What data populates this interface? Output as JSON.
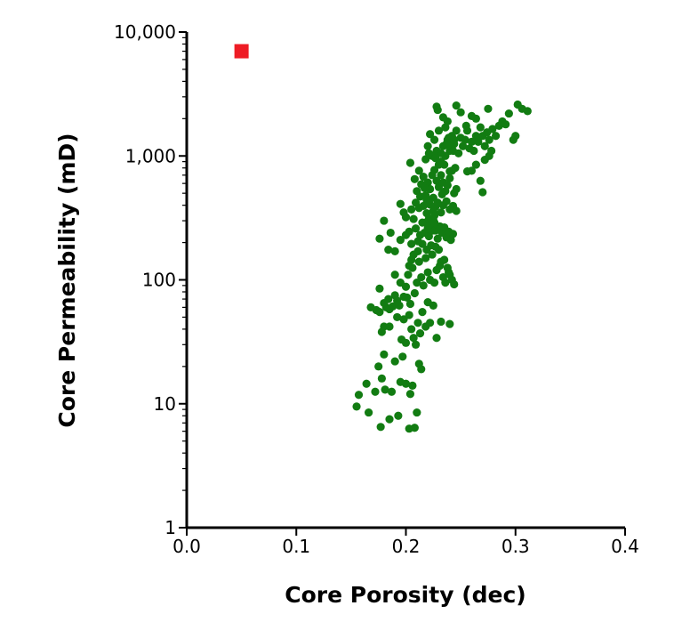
{
  "colors": {
    "series_main": "#127c12",
    "series_outlier": "#ee1c25",
    "axis": "#000000"
  },
  "chart_data": {
    "type": "scatter",
    "xlabel": "Core Porosity (dec)",
    "ylabel": "Core Permeability (mD)",
    "xlim": [
      0.0,
      0.4
    ],
    "ylim": [
      1,
      10000
    ],
    "yscale": "log",
    "grid": false,
    "legend": "none",
    "x_ticks": [
      "0.0",
      "0.1",
      "0.2",
      "0.3",
      "0.4"
    ],
    "x_tick_values": [
      0.0,
      0.1,
      0.2,
      0.3,
      0.4
    ],
    "y_ticks": [
      "1",
      "10",
      "100",
      "1,000",
      "10,000"
    ],
    "y_tick_values": [
      1,
      10,
      100,
      1000,
      10000
    ],
    "series": [
      {
        "marker": "circle",
        "color": "#127c12",
        "points": [
          [
            0.155,
            9.5
          ],
          [
            0.157,
            11.8
          ],
          [
            0.164,
            14.5
          ],
          [
            0.166,
            8.5
          ],
          [
            0.172,
            12.5
          ],
          [
            0.175,
            20
          ],
          [
            0.177,
            6.5
          ],
          [
            0.178,
            16
          ],
          [
            0.18,
            25
          ],
          [
            0.181,
            13
          ],
          [
            0.185,
            7.5
          ],
          [
            0.187,
            12.5
          ],
          [
            0.19,
            22
          ],
          [
            0.193,
            8
          ],
          [
            0.195,
            15
          ],
          [
            0.197,
            24
          ],
          [
            0.2,
            14.5
          ],
          [
            0.203,
            6.3
          ],
          [
            0.204,
            12
          ],
          [
            0.206,
            14
          ],
          [
            0.208,
            6.4
          ],
          [
            0.21,
            8.5
          ],
          [
            0.212,
            21
          ],
          [
            0.214,
            19
          ],
          [
            0.168,
            60
          ],
          [
            0.173,
            57
          ],
          [
            0.176,
            55
          ],
          [
            0.178,
            38
          ],
          [
            0.18,
            42
          ],
          [
            0.182,
            60
          ],
          [
            0.184,
            70
          ],
          [
            0.185,
            42
          ],
          [
            0.188,
            61
          ],
          [
            0.19,
            75
          ],
          [
            0.192,
            50
          ],
          [
            0.194,
            62
          ],
          [
            0.196,
            33
          ],
          [
            0.198,
            48
          ],
          [
            0.2,
            31
          ],
          [
            0.201,
            72
          ],
          [
            0.203,
            52
          ],
          [
            0.205,
            40
          ],
          [
            0.207,
            34
          ],
          [
            0.209,
            30
          ],
          [
            0.211,
            45
          ],
          [
            0.213,
            37
          ],
          [
            0.215,
            55
          ],
          [
            0.218,
            42
          ],
          [
            0.22,
            66
          ],
          [
            0.222,
            45
          ],
          [
            0.225,
            62
          ],
          [
            0.228,
            34
          ],
          [
            0.232,
            46
          ],
          [
            0.24,
            44
          ],
          [
            0.176,
            85
          ],
          [
            0.18,
            65
          ],
          [
            0.185,
            58
          ],
          [
            0.19,
            110
          ],
          [
            0.192,
            68
          ],
          [
            0.195,
            95
          ],
          [
            0.198,
            73
          ],
          [
            0.2,
            88
          ],
          [
            0.202,
            110
          ],
          [
            0.204,
            64
          ],
          [
            0.206,
            125
          ],
          [
            0.208,
            78
          ],
          [
            0.21,
            95
          ],
          [
            0.212,
            140
          ],
          [
            0.214,
            105
          ],
          [
            0.216,
            90
          ],
          [
            0.218,
            150
          ],
          [
            0.22,
            115
          ],
          [
            0.222,
            100
          ],
          [
            0.224,
            160
          ],
          [
            0.226,
            95
          ],
          [
            0.228,
            120
          ],
          [
            0.23,
            175
          ],
          [
            0.232,
            140
          ],
          [
            0.234,
            105
          ],
          [
            0.236,
            95
          ],
          [
            0.238,
            125
          ],
          [
            0.24,
            110
          ],
          [
            0.242,
            100
          ],
          [
            0.244,
            92
          ],
          [
            0.207,
            160
          ],
          [
            0.211,
            170
          ],
          [
            0.215,
            195
          ],
          [
            0.219,
            175
          ],
          [
            0.223,
            190
          ],
          [
            0.227,
            185
          ],
          [
            0.231,
            130
          ],
          [
            0.235,
            145
          ],
          [
            0.239,
            115
          ],
          [
            0.203,
            130
          ],
          [
            0.205,
            145
          ],
          [
            0.176,
            215
          ],
          [
            0.18,
            300
          ],
          [
            0.184,
            175
          ],
          [
            0.186,
            240
          ],
          [
            0.19,
            170
          ],
          [
            0.195,
            210
          ],
          [
            0.198,
            350
          ],
          [
            0.2,
            230
          ],
          [
            0.203,
            245
          ],
          [
            0.205,
            195
          ],
          [
            0.207,
            310
          ],
          [
            0.209,
            260
          ],
          [
            0.211,
            205
          ],
          [
            0.213,
            230
          ],
          [
            0.215,
            290
          ],
          [
            0.217,
            240
          ],
          [
            0.219,
            345
          ],
          [
            0.221,
            225
          ],
          [
            0.223,
            260
          ],
          [
            0.225,
            305
          ],
          [
            0.227,
            250
          ],
          [
            0.229,
            215
          ],
          [
            0.231,
            270
          ],
          [
            0.233,
            240
          ],
          [
            0.235,
            265
          ],
          [
            0.237,
            220
          ],
          [
            0.239,
            245
          ],
          [
            0.241,
            210
          ],
          [
            0.243,
            235
          ],
          [
            0.195,
            410
          ],
          [
            0.2,
            320
          ],
          [
            0.205,
            370
          ],
          [
            0.209,
            420
          ],
          [
            0.212,
            380
          ],
          [
            0.216,
            395
          ],
          [
            0.219,
            440
          ],
          [
            0.222,
            405
          ],
          [
            0.225,
            360
          ],
          [
            0.227,
            390
          ],
          [
            0.229,
            420
          ],
          [
            0.232,
            350
          ],
          [
            0.234,
            400
          ],
          [
            0.237,
            430
          ],
          [
            0.24,
            370
          ],
          [
            0.243,
            395
          ],
          [
            0.246,
            360
          ],
          [
            0.218,
            290
          ],
          [
            0.221,
            310
          ],
          [
            0.224,
            275
          ],
          [
            0.226,
            330
          ],
          [
            0.22,
            260
          ],
          [
            0.224,
            250
          ],
          [
            0.222,
            280
          ],
          [
            0.226,
            290
          ],
          [
            0.204,
            880
          ],
          [
            0.208,
            650
          ],
          [
            0.21,
            520
          ],
          [
            0.212,
            760
          ],
          [
            0.214,
            590
          ],
          [
            0.216,
            680
          ],
          [
            0.218,
            480
          ],
          [
            0.22,
            610
          ],
          [
            0.222,
            540
          ],
          [
            0.224,
            700
          ],
          [
            0.226,
            770
          ],
          [
            0.228,
            630
          ],
          [
            0.23,
            560
          ],
          [
            0.232,
            700
          ],
          [
            0.234,
            610
          ],
          [
            0.236,
            520
          ],
          [
            0.238,
            580
          ],
          [
            0.24,
            660
          ],
          [
            0.242,
            760
          ],
          [
            0.244,
            500
          ],
          [
            0.246,
            540
          ],
          [
            0.213,
            470
          ],
          [
            0.217,
            550
          ],
          [
            0.225,
            460
          ],
          [
            0.233,
            490
          ],
          [
            0.22,
            1200
          ],
          [
            0.222,
            1500
          ],
          [
            0.224,
            1000
          ],
          [
            0.226,
            1350
          ],
          [
            0.228,
            1100
          ],
          [
            0.23,
            1600
          ],
          [
            0.232,
            900
          ],
          [
            0.234,
            1200
          ],
          [
            0.236,
            1700
          ],
          [
            0.238,
            1300
          ],
          [
            0.24,
            1100
          ],
          [
            0.242,
            1450
          ],
          [
            0.244,
            1250
          ],
          [
            0.246,
            1600
          ],
          [
            0.248,
            1050
          ],
          [
            0.25,
            1400
          ],
          [
            0.252,
            1200
          ],
          [
            0.254,
            1350
          ],
          [
            0.256,
            1600
          ],
          [
            0.258,
            1150
          ],
          [
            0.26,
            1300
          ],
          [
            0.262,
            1100
          ],
          [
            0.264,
            1450
          ],
          [
            0.266,
            1300
          ],
          [
            0.268,
            1700
          ],
          [
            0.27,
            1450
          ],
          [
            0.272,
            1200
          ],
          [
            0.274,
            1550
          ],
          [
            0.276,
            1350
          ],
          [
            0.279,
            1650
          ],
          [
            0.282,
            1450
          ],
          [
            0.285,
            1750
          ],
          [
            0.288,
            1900
          ],
          [
            0.291,
            1800
          ],
          [
            0.294,
            2200
          ],
          [
            0.298,
            1350
          ],
          [
            0.3,
            1450
          ],
          [
            0.302,
            2600
          ],
          [
            0.306,
            2400
          ],
          [
            0.311,
            2300
          ],
          [
            0.228,
            2500
          ],
          [
            0.229,
            2350
          ],
          [
            0.234,
            2050
          ],
          [
            0.238,
            1900
          ],
          [
            0.246,
            2550
          ],
          [
            0.25,
            2250
          ],
          [
            0.255,
            1750
          ],
          [
            0.26,
            2100
          ],
          [
            0.264,
            2000
          ],
          [
            0.275,
            2400
          ],
          [
            0.235,
            850
          ],
          [
            0.24,
            750
          ],
          [
            0.245,
            800
          ],
          [
            0.256,
            750
          ],
          [
            0.26,
            760
          ],
          [
            0.264,
            850
          ],
          [
            0.27,
            510
          ],
          [
            0.272,
            930
          ],
          [
            0.268,
            630
          ],
          [
            0.276,
            1000
          ],
          [
            0.278,
            1100
          ],
          [
            0.238,
            1350
          ],
          [
            0.24,
            1200
          ],
          [
            0.242,
            1250
          ],
          [
            0.244,
            1350
          ],
          [
            0.241,
            1150
          ],
          [
            0.237,
            1250
          ],
          [
            0.243,
            1100
          ],
          [
            0.239,
            1400
          ],
          [
            0.236,
            1000
          ],
          [
            0.23,
            850
          ],
          [
            0.232,
            1050
          ],
          [
            0.227,
            960
          ],
          [
            0.218,
            940
          ],
          [
            0.221,
            1050
          ]
        ]
      },
      {
        "marker": "square",
        "color": "#ee1c25",
        "points": [
          [
            0.05,
            7000
          ]
        ]
      }
    ]
  }
}
